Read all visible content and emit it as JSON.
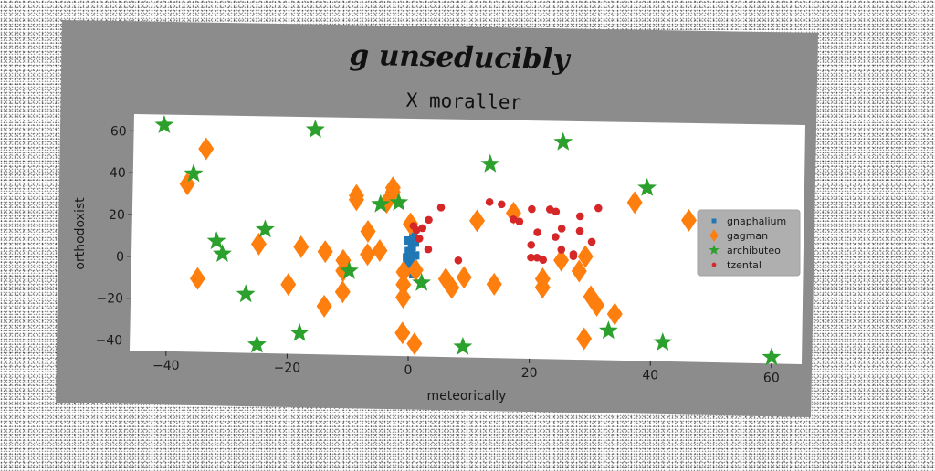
{
  "chart_data": {
    "type": "scatter",
    "title": "g unseducibly",
    "subtitle": "X moraller",
    "xlabel": "meteorically",
    "ylabel": "orthodoxist",
    "xlim": [
      -46,
      65
    ],
    "ylim": [
      -45,
      68
    ],
    "xticks": [
      -40,
      -20,
      0,
      20,
      40,
      60
    ],
    "yticks": [
      -40,
      -20,
      0,
      20,
      40,
      60
    ],
    "xtick_labels": [
      "−40",
      "−20",
      "0",
      "20",
      "40",
      "60"
    ],
    "ytick_labels": [
      "−40",
      "−20",
      "0",
      "20",
      "40",
      "60"
    ],
    "grid": false,
    "legend_position": "right",
    "series": [
      {
        "name": "gnaphalium",
        "marker": "square",
        "color": "#1f77b4",
        "points": [
          [
            -0.3,
            -1
          ],
          [
            0.2,
            -3
          ],
          [
            0.6,
            -6
          ],
          [
            -0.5,
            2
          ],
          [
            0.5,
            0
          ],
          [
            0.9,
            3
          ],
          [
            -0.2,
            5
          ],
          [
            0.3,
            7
          ],
          [
            0.8,
            9
          ],
          [
            -0.4,
            10
          ],
          [
            0.5,
            12
          ],
          [
            0,
            4
          ],
          [
            0.4,
            -4
          ],
          [
            -0.1,
            -2
          ]
        ]
      },
      {
        "name": "gagman",
        "marker": "diamond",
        "color": "#ff7f0e",
        "points": [
          [
            -34,
            52
          ],
          [
            -37,
            35
          ],
          [
            -35,
            -10
          ],
          [
            -25,
            7
          ],
          [
            -20,
            -12
          ],
          [
            -18,
            6
          ],
          [
            -14,
            -22
          ],
          [
            -14,
            4
          ],
          [
            -11,
            -5
          ],
          [
            -11,
            -15
          ],
          [
            -11,
            0
          ],
          [
            -9,
            29
          ],
          [
            -9,
            31
          ],
          [
            -7,
            3
          ],
          [
            -7,
            14
          ],
          [
            -5,
            5
          ],
          [
            -4,
            28
          ],
          [
            -3,
            33
          ],
          [
            -3,
            35
          ],
          [
            -1,
            -17
          ],
          [
            -1,
            -5
          ],
          [
            -1,
            -11
          ],
          [
            -1,
            -34
          ],
          [
            0,
            18
          ],
          [
            1,
            -4
          ],
          [
            1,
            -39
          ],
          [
            6,
            -8
          ],
          [
            7,
            -12
          ],
          [
            9,
            -7
          ],
          [
            11,
            20
          ],
          [
            14,
            -10
          ],
          [
            17,
            24
          ],
          [
            22,
            -7
          ],
          [
            22,
            -11
          ],
          [
            25,
            2
          ],
          [
            28,
            -3
          ],
          [
            29,
            4
          ],
          [
            29,
            -35
          ],
          [
            30,
            -15
          ],
          [
            31,
            -19
          ],
          [
            34,
            -23
          ],
          [
            37,
            30
          ],
          [
            46,
            22
          ]
        ]
      },
      {
        "name": "archibuteo",
        "marker": "star",
        "color": "#2ca02c",
        "points": [
          [
            -41,
            63
          ],
          [
            -36,
            40
          ],
          [
            -32,
            8
          ],
          [
            -31,
            2
          ],
          [
            -27,
            -17
          ],
          [
            -24,
            14
          ],
          [
            -25,
            -41
          ],
          [
            -18,
            -35
          ],
          [
            -16,
            62
          ],
          [
            -10,
            -5
          ],
          [
            -5,
            27
          ],
          [
            -2,
            28
          ],
          [
            2,
            -10
          ],
          [
            9,
            -40
          ],
          [
            13,
            47
          ],
          [
            25,
            58
          ],
          [
            33,
            -31
          ],
          [
            39,
            37
          ],
          [
            42,
            -36
          ],
          [
            60,
            -42
          ]
        ]
      },
      {
        "name": "tzental",
        "marker": "circle",
        "color": "#d62728",
        "points": [
          [
            0.5,
            17
          ],
          [
            1,
            15
          ],
          [
            1.5,
            11
          ],
          [
            2,
            16
          ],
          [
            3,
            20
          ],
          [
            3,
            6
          ],
          [
            5,
            26
          ],
          [
            8,
            1
          ],
          [
            13,
            29
          ],
          [
            15,
            28
          ],
          [
            17,
            21
          ],
          [
            18,
            20
          ],
          [
            20,
            9
          ],
          [
            20,
            3
          ],
          [
            20,
            26
          ],
          [
            21,
            15
          ],
          [
            21,
            3
          ],
          [
            22,
            2
          ],
          [
            23,
            26
          ],
          [
            24,
            25
          ],
          [
            24,
            13
          ],
          [
            25,
            17
          ],
          [
            25,
            7
          ],
          [
            27,
            5
          ],
          [
            27,
            4
          ],
          [
            28,
            23
          ],
          [
            28,
            16
          ],
          [
            30,
            11
          ],
          [
            31,
            27
          ]
        ]
      }
    ]
  }
}
